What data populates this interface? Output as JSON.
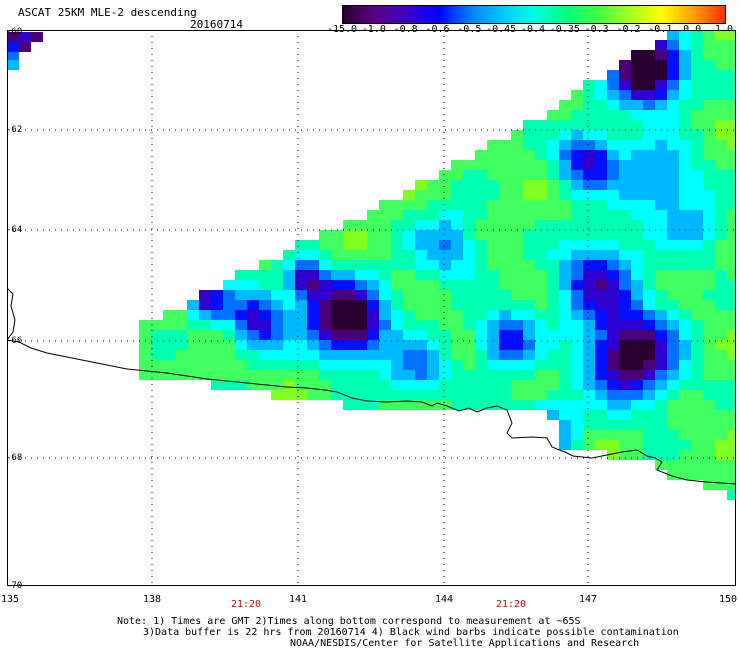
{
  "header": {
    "title": "ASCAT 25KM MLE-2 descending",
    "date": "20160714"
  },
  "colorbar": {
    "labels": [
      "-15.0",
      "-1.0",
      "-0.8",
      "-0.6",
      "-0.5",
      "-0.45",
      "-0.4",
      "-0.35",
      "-0.3",
      "-0.2",
      "-0.1",
      "0.0",
      "1.0"
    ],
    "colors": [
      "#2a0030",
      "#5a0080",
      "#4000c8",
      "#0000ff",
      "#0080ff",
      "#00c8ff",
      "#00ffe0",
      "#00ff80",
      "#40ff40",
      "#a0ff20",
      "#ffff00",
      "#ffa000",
      "#ff3000"
    ]
  },
  "map": {
    "lat_labels": [
      "-60",
      "-62",
      "-64",
      "-66",
      "-68",
      "-70"
    ],
    "lon_labels": [
      "135",
      "138",
      "141",
      "144",
      "147",
      "150"
    ],
    "pass_times": [
      "21:20",
      "21:20"
    ]
  },
  "notes": {
    "line1": "Note: 1) Times are GMT 2)Times along bottom correspond to measurement at ~65S",
    "line2": "3)Data buffer is 22 hrs from 20160714 4) Black wind barbs indicate possible contamination",
    "line3": "NOAA/NESDIS/Center for Satellite Applications and Research"
  }
}
